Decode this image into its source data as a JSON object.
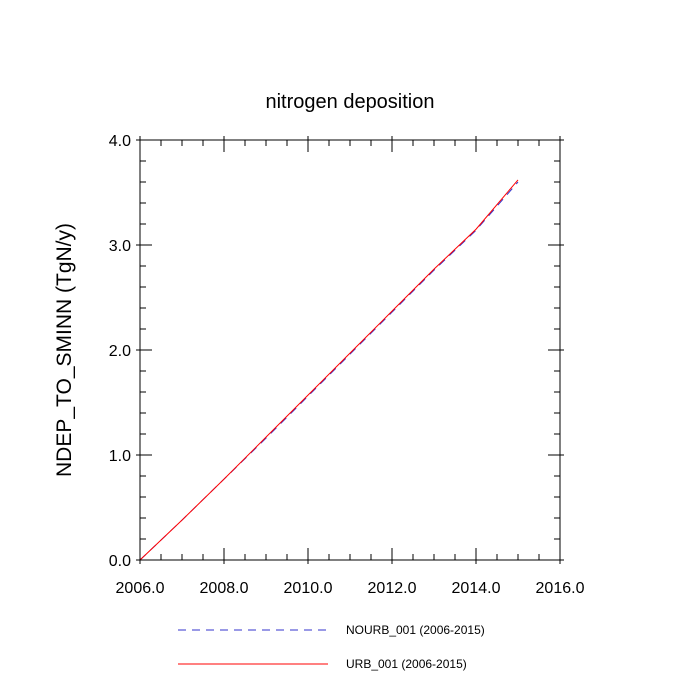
{
  "chart_data": {
    "type": "line",
    "title": "nitrogen deposition",
    "xlabel": "",
    "ylabel": "NDEP_TO_SMINN  (TgN/y)",
    "xlim": [
      2006.0,
      2016.0
    ],
    "ylim": [
      0.0,
      4.0
    ],
    "xticks": [
      2006.0,
      2008.0,
      2010.0,
      2012.0,
      2014.0,
      2016.0
    ],
    "xtick_labels": [
      "2006.0",
      "2008.0",
      "2010.0",
      "2012.0",
      "2014.0",
      "2016.0"
    ],
    "yticks": [
      0.0,
      1.0,
      2.0,
      3.0,
      4.0
    ],
    "ytick_labels": [
      "0.0",
      "1.0",
      "2.0",
      "3.0",
      "4.0"
    ],
    "grid": false,
    "legend_position": "bottom",
    "series": [
      {
        "name": "NOURB_001 (2006-2015)",
        "color": "#3333cc",
        "style": "dashed",
        "x": [
          2006,
          2007,
          2008,
          2009,
          2010,
          2011,
          2012,
          2013,
          2014,
          2015
        ],
        "y": [
          0.0,
          0.38,
          0.77,
          1.16,
          1.56,
          1.96,
          2.36,
          2.76,
          3.14,
          3.6
        ]
      },
      {
        "name": "URB_001 (2006-2015)",
        "color": "#ff0000",
        "style": "solid",
        "x": [
          2006,
          2007,
          2008,
          2009,
          2010,
          2011,
          2012,
          2013,
          2014,
          2015
        ],
        "y": [
          0.0,
          0.38,
          0.77,
          1.17,
          1.57,
          1.97,
          2.37,
          2.77,
          3.15,
          3.62
        ]
      }
    ]
  }
}
